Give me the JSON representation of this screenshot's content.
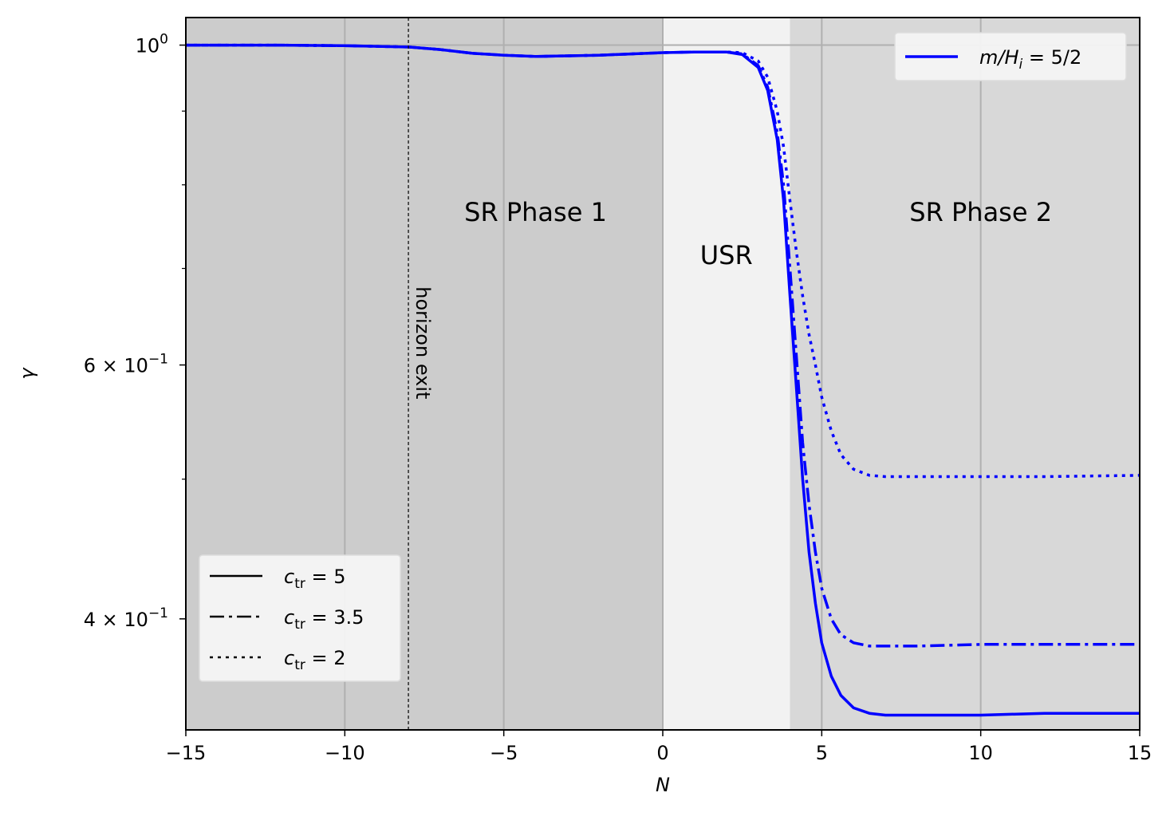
{
  "chart_data": {
    "type": "line",
    "xlabel": "N",
    "ylabel": "γ",
    "xlim": [
      -15,
      15
    ],
    "ylim": [
      0.335,
      1.045
    ],
    "yscale": "log",
    "grid": "x-only",
    "xticks": [
      {
        "value": -15,
        "label": "−15"
      },
      {
        "value": -10,
        "label": "−10"
      },
      {
        "value": -5,
        "label": "−5"
      },
      {
        "value": 0,
        "label": "0"
      },
      {
        "value": 5,
        "label": "5"
      },
      {
        "value": 10,
        "label": "10"
      },
      {
        "value": 15,
        "label": "15"
      }
    ],
    "yticks_major": [
      {
        "value": 1.0,
        "base": "10",
        "exp": "0"
      },
      {
        "value": 0.6,
        "base": "6 × 10",
        "exp": "−1"
      },
      {
        "value": 0.4,
        "base": "4 × 10",
        "exp": "−1"
      }
    ],
    "yticks_minor": [
      0.5,
      0.7,
      0.8,
      0.9
    ],
    "regions": [
      {
        "label": "",
        "x0": -15,
        "x1": -8,
        "color": "#cccccc"
      },
      {
        "label": "SR Phase 1",
        "x0": -8,
        "x1": 0,
        "color": "#cccccc",
        "label_x": -4,
        "label_y": 0.755
      },
      {
        "label": "USR",
        "x0": 0,
        "x1": 4,
        "color": "#f2f2f2",
        "label_x": 2,
        "label_y": 0.705
      },
      {
        "label": "SR Phase 2",
        "x0": 4,
        "x1": 15,
        "color": "#d8d8d8",
        "label_x": 10,
        "label_y": 0.755
      }
    ],
    "annotation": {
      "text": "horizon exit",
      "x": -8,
      "y": 0.68
    },
    "color": "#0000ff",
    "series": [
      {
        "name": "c_tr = 5",
        "style": "solid",
        "x": [
          -15,
          -12,
          -10,
          -8,
          -7,
          -6,
          -5,
          -4,
          -3,
          -2,
          -1,
          0,
          1,
          2,
          2.5,
          3,
          3.3,
          3.6,
          3.8,
          4.0,
          4.2,
          4.4,
          4.6,
          4.8,
          5.0,
          5.3,
          5.6,
          6.0,
          6.5,
          7.0,
          7.5,
          8,
          10,
          12,
          15
        ],
        "y": [
          1.0,
          1.0,
          0.999,
          0.997,
          0.993,
          0.987,
          0.984,
          0.982,
          0.983,
          0.984,
          0.986,
          0.988,
          0.989,
          0.989,
          0.985,
          0.965,
          0.93,
          0.86,
          0.78,
          0.67,
          0.58,
          0.5,
          0.445,
          0.41,
          0.385,
          0.365,
          0.354,
          0.347,
          0.344,
          0.343,
          0.343,
          0.343,
          0.343,
          0.344,
          0.344
        ]
      },
      {
        "name": "c_tr = 3.5",
        "style": "dashdot",
        "x": [
          -15,
          -12,
          -10,
          -8,
          -7,
          -6,
          -5,
          -4,
          -3,
          -2,
          -1,
          0,
          1,
          2,
          2.5,
          3,
          3.3,
          3.6,
          3.8,
          4.0,
          4.2,
          4.4,
          4.6,
          4.8,
          5.0,
          5.3,
          5.6,
          6.0,
          6.5,
          7.0,
          8,
          10,
          12,
          15
        ],
        "y": [
          1.0,
          1.0,
          0.999,
          0.997,
          0.993,
          0.987,
          0.984,
          0.982,
          0.983,
          0.984,
          0.986,
          0.988,
          0.989,
          0.989,
          0.986,
          0.968,
          0.935,
          0.87,
          0.8,
          0.7,
          0.61,
          0.53,
          0.48,
          0.445,
          0.42,
          0.4,
          0.39,
          0.385,
          0.383,
          0.383,
          0.383,
          0.384,
          0.384,
          0.384
        ]
      },
      {
        "name": "c_tr = 2",
        "style": "dotted",
        "x": [
          -15,
          -12,
          -10,
          -8,
          -7,
          -6,
          -5,
          -4,
          -3,
          -2,
          -1,
          0,
          1,
          2,
          2.5,
          3,
          3.3,
          3.6,
          3.8,
          4.0,
          4.2,
          4.4,
          4.6,
          4.8,
          5.0,
          5.3,
          5.6,
          6.0,
          6.5,
          7.0,
          8,
          10,
          12,
          15
        ],
        "y": [
          1.0,
          1.0,
          0.999,
          0.997,
          0.993,
          0.987,
          0.984,
          0.982,
          0.983,
          0.984,
          0.986,
          0.988,
          0.989,
          0.989,
          0.988,
          0.975,
          0.95,
          0.9,
          0.85,
          0.78,
          0.72,
          0.67,
          0.63,
          0.6,
          0.57,
          0.54,
          0.52,
          0.508,
          0.503,
          0.502,
          0.502,
          0.502,
          0.502,
          0.503
        ]
      }
    ],
    "legend_style": {
      "position": "lower-left",
      "entries": [
        {
          "var": "c",
          "sub": "tr",
          "value": "= 5",
          "style": "solid"
        },
        {
          "var": "c",
          "sub": "tr",
          "value": "= 3.5",
          "style": "dashdot"
        },
        {
          "var": "c",
          "sub": "tr",
          "value": "= 2",
          "style": "dotted"
        }
      ]
    },
    "legend_color": {
      "position": "top-right",
      "label": "m/H",
      "sub": "i",
      "value": " = 5/2"
    }
  }
}
